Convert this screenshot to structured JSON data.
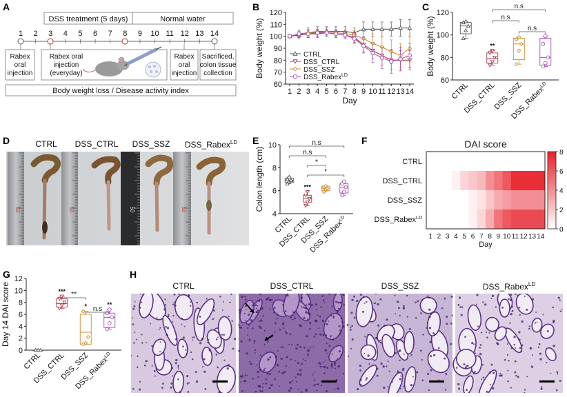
{
  "panel_labels": {
    "A": "A",
    "B": "B",
    "C": "C",
    "D": "D",
    "E": "E",
    "F": "F",
    "G": "G",
    "H": "H"
  },
  "schematic": {
    "days": [
      "1",
      "2",
      "3",
      "4",
      "5",
      "6",
      "7",
      "8",
      "9",
      "10",
      "11",
      "12",
      "13",
      "14"
    ],
    "dss_label": "DSS treatment (5 days)",
    "water_label": "Normal water",
    "box1": [
      "Rabex",
      "oral",
      "injection"
    ],
    "box2": [
      "Rabex oral",
      "injection",
      "(everyday)"
    ],
    "box3": [
      "Rabex",
      "oral",
      "injection"
    ],
    "box4": [
      "Sacrificed,",
      "colon tissue",
      "collection"
    ],
    "footer": "Body weight loss / Disease activity index"
  },
  "photo_labels": [
    "CTRL",
    "DSS_CTRL",
    "DSS_SSZ",
    "DSS_Rabex",
    "LD"
  ],
  "ruler_marks": [
    "50",
    "50",
    "50",
    "50"
  ],
  "histology_titles": [
    "CTRL",
    "DSS_CTRL",
    "DSS_SSZ",
    "DSS_Rabex",
    "LD"
  ],
  "colors": {
    "ctrl": "#555555",
    "dss_ctrl": "#b03a48",
    "ssz": "#d08a2a",
    "rabex": "#a24bb5",
    "heat_max": "#e8202a"
  },
  "chart_data": [
    {
      "id": "B",
      "type": "line",
      "ylabel": "Body weight (%)",
      "xlabel": "Day",
      "ylim": [
        60,
        120
      ],
      "yticks": [
        "60",
        "70",
        "80",
        "90",
        "100",
        "110",
        "120"
      ],
      "x": [
        "1",
        "2",
        "3",
        "4",
        "5",
        "6",
        "7",
        "8",
        "9",
        "10",
        "11",
        "12",
        "13",
        "14"
      ],
      "series": [
        {
          "name": "CTRL",
          "marker": "triangle",
          "values": [
            100,
            101,
            103,
            104,
            104,
            104,
            104,
            103,
            106,
            106,
            106,
            106,
            107,
            107
          ],
          "err": [
            1,
            2,
            4,
            4,
            4,
            4,
            4,
            4,
            6,
            6,
            6,
            6,
            7,
            7
          ]
        },
        {
          "name": "DSS_CTRL",
          "marker": "triangle-down",
          "values": [
            100,
            101,
            102,
            102,
            103,
            102,
            101,
            99,
            93,
            88,
            84,
            80,
            80,
            80
          ],
          "err": [
            1,
            3,
            3,
            3,
            3,
            3,
            3,
            4,
            6,
            7,
            8,
            8,
            8,
            8
          ]
        },
        {
          "name": "DSS_SSZ",
          "marker": "diamond",
          "values": [
            100,
            102,
            103,
            103,
            104,
            103,
            102,
            101,
            98,
            94,
            91,
            87,
            84,
            90
          ],
          "err": [
            1,
            3,
            3,
            3,
            3,
            3,
            3,
            4,
            6,
            8,
            9,
            10,
            10,
            10
          ]
        },
        {
          "name": "DSS_Rabex",
          "sup": "LD",
          "marker": "circle",
          "values": [
            100,
            102,
            102,
            103,
            103,
            102,
            101,
            98,
            92,
            86,
            82,
            79,
            81,
            84
          ],
          "err": [
            1,
            3,
            3,
            3,
            3,
            3,
            3,
            4,
            6,
            8,
            9,
            10,
            10,
            10
          ]
        }
      ]
    },
    {
      "id": "C",
      "type": "box",
      "ylabel": "Body weight (%)",
      "ylim": [
        60,
        120
      ],
      "yticks": [
        "60",
        "80",
        "100",
        "120"
      ],
      "categories": [
        "CTRL",
        "DSS_CTRL",
        "DSS_SSZ",
        "DSS_Rabex"
      ],
      "cat_sup": [
        "",
        "",
        "",
        "LD"
      ],
      "boxes": [
        {
          "min": 97,
          "q1": 101,
          "median": 108,
          "q3": 111,
          "max": 112,
          "points": [
            97,
            104,
            108,
            111,
            112
          ]
        },
        {
          "min": 73,
          "q1": 75,
          "median": 79,
          "q3": 84,
          "max": 86,
          "points": [
            73,
            76,
            80,
            84,
            86
          ]
        },
        {
          "min": 74,
          "q1": 78,
          "median": 92,
          "q3": 97,
          "max": 98,
          "points": [
            74,
            86,
            92,
            96,
            98
          ]
        },
        {
          "min": 72,
          "q1": 73,
          "median": 80,
          "q3": 97,
          "max": 99,
          "points": [
            72,
            75,
            80,
            92,
            99
          ]
        }
      ],
      "stars": [
        "",
        "**",
        "",
        ""
      ],
      "comparisons": [
        {
          "from": 1,
          "to": 3,
          "label": "n.s"
        },
        {
          "from": 1,
          "to": 2,
          "label": "n.s"
        },
        {
          "from": 2,
          "to": 3,
          "label": "n.s"
        }
      ]
    },
    {
      "id": "E",
      "type": "box",
      "ylabel": "Colon length (cm)",
      "ylim": [
        4,
        10
      ],
      "yticks": [
        "4",
        "6",
        "8",
        "10"
      ],
      "categories": [
        "CTRL",
        "DSS_CTRL",
        "DSS_SSZ",
        "DSS_Rabex"
      ],
      "cat_sup": [
        "",
        "",
        "",
        "LD"
      ],
      "boxes": [
        {
          "min": 6.6,
          "q1": 6.7,
          "median": 6.9,
          "q3": 7.1,
          "max": 7.2,
          "points": [
            6.6,
            6.8,
            6.9,
            7.0,
            7.2
          ]
        },
        {
          "min": 4.7,
          "q1": 5.0,
          "median": 5.3,
          "q3": 5.6,
          "max": 5.9,
          "points": [
            4.7,
            5.0,
            5.3,
            5.6,
            5.9
          ]
        },
        {
          "min": 5.9,
          "q1": 6.0,
          "median": 6.2,
          "q3": 6.4,
          "max": 6.4,
          "points": [
            5.9,
            6.1,
            6.2,
            6.3,
            6.4
          ]
        },
        {
          "min": 5.6,
          "q1": 5.8,
          "median": 6.3,
          "q3": 6.6,
          "max": 6.8,
          "points": [
            5.6,
            5.9,
            6.3,
            6.6,
            6.8
          ]
        }
      ],
      "stars": [
        "",
        "***",
        "",
        ""
      ],
      "comparisons": [
        {
          "from": 0,
          "to": 3,
          "label": "n.s"
        },
        {
          "from": 0,
          "to": 2,
          "label": "n.s"
        },
        {
          "from": 1,
          "to": 2,
          "label": "*"
        },
        {
          "from": 1,
          "to": 3,
          "label": "*"
        }
      ]
    },
    {
      "id": "F",
      "type": "heatmap",
      "title": "DAI score",
      "xlabel": "Day",
      "rows": [
        "CTRL",
        "DSS_CTRL",
        "DSS_SSZ",
        "DSS_Rabex"
      ],
      "row_sup": [
        "",
        "",
        "",
        "LD"
      ],
      "cols": [
        "1",
        "2",
        "3",
        "4",
        "5",
        "6",
        "7",
        "8",
        "9",
        "10",
        "11",
        "12",
        "13",
        "14"
      ],
      "values": [
        [
          0,
          0,
          0,
          0,
          0,
          0,
          0,
          0,
          0,
          0,
          0,
          0,
          0,
          0
        ],
        [
          0,
          0,
          0,
          0.5,
          1.5,
          2,
          2.5,
          4,
          5,
          6,
          7.5,
          7.5,
          7.5,
          7.5
        ],
        [
          0,
          0,
          0,
          0,
          0,
          0.5,
          1,
          2,
          3,
          3.5,
          4,
          4,
          4,
          4
        ],
        [
          0,
          0,
          0,
          0,
          0,
          0.5,
          1.5,
          3,
          5,
          6,
          6.5,
          6.5,
          6.5,
          6.5
        ]
      ],
      "vmin": 0,
      "vmax": 8,
      "cbar_ticks": [
        "0",
        "2",
        "4",
        "6",
        "8"
      ]
    },
    {
      "id": "G",
      "type": "box",
      "ylabel": "Day 14 DAI score",
      "ylim": [
        0,
        12
      ],
      "yticks": [
        "0",
        "2",
        "4",
        "6",
        "8",
        "10",
        "12"
      ],
      "categories": [
        "CTRL",
        "DSS_CTRL",
        "DSS_SSZ",
        "DSS_Rabex"
      ],
      "cat_sup": [
        "",
        "",
        "",
        "LD"
      ],
      "boxes": [
        {
          "min": 0,
          "q1": 0,
          "median": 0,
          "q3": 0,
          "max": 0,
          "points": [
            0,
            0,
            0,
            0
          ]
        },
        {
          "min": 7,
          "q1": 7.2,
          "median": 7.8,
          "q3": 8.6,
          "max": 9,
          "points": [
            7,
            7.5,
            8,
            8.6,
            9
          ]
        },
        {
          "min": 1,
          "q1": 1,
          "median": 3,
          "q3": 6,
          "max": 6.5,
          "points": [
            1,
            1.2,
            2.2,
            6.5
          ]
        },
        {
          "min": 3.5,
          "q1": 3.8,
          "median": 5.5,
          "q3": 6.2,
          "max": 6.8,
          "points": [
            3.5,
            4.5,
            5.5,
            6.2,
            6.8
          ]
        }
      ],
      "stars": [
        "",
        "***",
        "*",
        "**"
      ],
      "comparisons": [
        {
          "from": 1,
          "to": 2,
          "label": "**"
        },
        {
          "from": 2,
          "to": 3,
          "label": "n.s"
        }
      ]
    }
  ]
}
